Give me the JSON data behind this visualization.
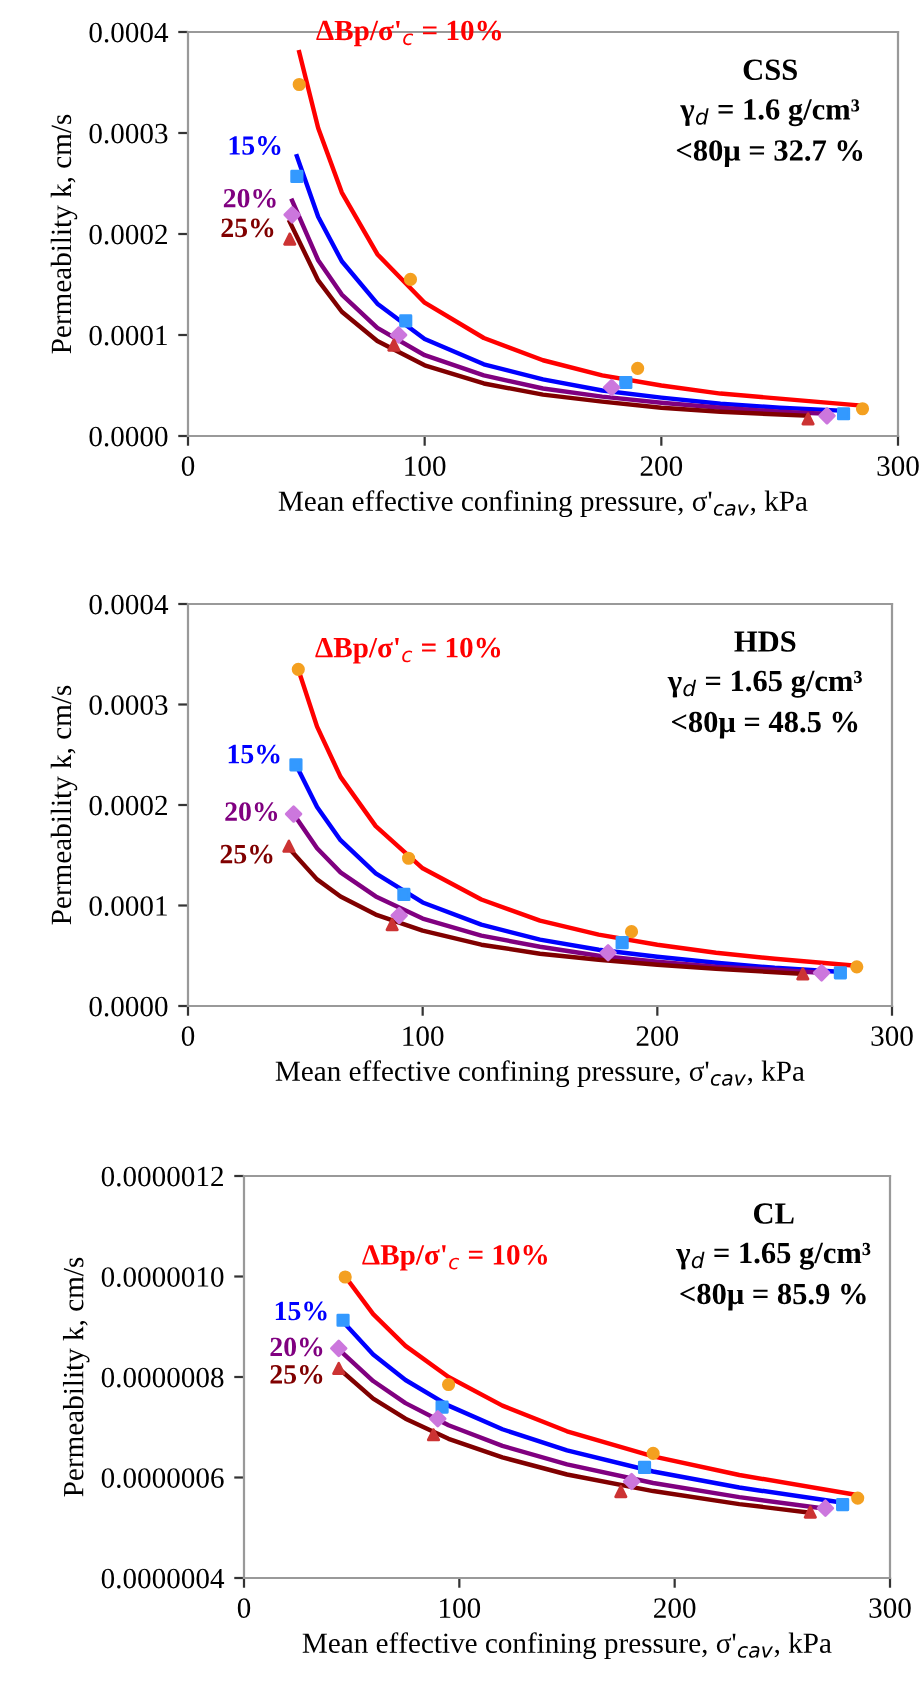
{
  "chart_data": [
    {
      "type": "scatter",
      "xlabel": "Mean effective confining pressure, σ'$_{cav}$, kPa",
      "ylabel": "Permeability k, cm/s",
      "xlim": [
        0,
        300
      ],
      "xticks": [
        0,
        100,
        200,
        300
      ],
      "ylim": [
        0,
        0.0004
      ],
      "yticks": [
        {
          "value": 0,
          "label": "0.0000"
        },
        {
          "value": 0.0001,
          "label": "0.0001"
        },
        {
          "value": 0.0002,
          "label": "0.0002"
        },
        {
          "value": 0.0003,
          "label": "0.0003"
        },
        {
          "value": 0.0004,
          "label": "0.0004"
        }
      ],
      "annotations": [
        "CSS",
        "γ$_{d}$ = 1.6 g/cm³",
        "<80μ = 32.7 %"
      ],
      "series": [
        {
          "marker": "circle",
          "color": "#f4a020",
          "x": [
            47,
            94,
            190,
            285
          ],
          "values": [
            0.000348,
            0.000155,
            6.7e-05,
            2.7e-05
          ]
        },
        {
          "marker": "square",
          "color": "#3399ff",
          "x": [
            46,
            92,
            185,
            277
          ],
          "values": [
            0.000257,
            0.000114,
            5.3e-05,
            2.2e-05
          ]
        },
        {
          "marker": "diamond",
          "color": "#cc77dd",
          "x": [
            44,
            89,
            179,
            270
          ],
          "values": [
            0.000219,
            0.0001,
            4.8e-05,
            2e-05
          ]
        },
        {
          "marker": "triangle",
          "color": "#cc3333",
          "x": [
            43,
            87,
            262
          ],
          "values": [
            0.000195,
            9e-05,
            1.7e-05
          ]
        },
        {
          "type": "line",
          "name": "ΔBp/σ'$_{c}$ = 10%",
          "color": "#ff0000",
          "x": [
            47,
            55,
            65,
            80,
            100,
            125,
            150,
            175,
            200,
            225,
            250,
            285
          ],
          "values": [
            0.00038,
            0.000305,
            0.000241,
            0.00018,
            0.000132,
            9.7e-05,
            7.5e-05,
            6e-05,
            5e-05,
            4.2e-05,
            3.7e-05,
            3e-05
          ]
        },
        {
          "type": "line",
          "name": "15%",
          "color": "#0000ff",
          "x": [
            46,
            55,
            65,
            80,
            100,
            125,
            150,
            175,
            200,
            225,
            250,
            277
          ],
          "values": [
            0.000277,
            0.000217,
            0.000173,
            0.000131,
            9.6e-05,
            7.1e-05,
            5.6e-05,
            4.5e-05,
            3.8e-05,
            3.2e-05,
            2.8e-05,
            2.5e-05
          ]
        },
        {
          "type": "line",
          "name": "20%",
          "color": "#800080",
          "x": [
            44,
            55,
            65,
            80,
            100,
            125,
            150,
            175,
            200,
            225,
            250,
            270
          ],
          "values": [
            0.000233,
            0.000174,
            0.00014,
            0.000107,
            8e-05,
            6e-05,
            4.7e-05,
            3.9e-05,
            3.3e-05,
            2.8e-05,
            2.4e-05,
            2.2e-05
          ]
        },
        {
          "type": "line",
          "name": "25%",
          "color": "#800000",
          "x": [
            43,
            55,
            65,
            80,
            100,
            125,
            150,
            175,
            200,
            225,
            262
          ],
          "values": [
            0.000212,
            0.000154,
            0.000123,
            9.4e-05,
            7e-05,
            5.2e-05,
            4.1e-05,
            3.4e-05,
            2.8e-05,
            2.4e-05,
            2e-05
          ]
        }
      ]
    },
    {
      "type": "scatter",
      "xlabel": "Mean effective confining pressure, σ'$_{cav}$, kPa",
      "ylabel": "Permeability k, cm/s",
      "xlim": [
        0,
        300
      ],
      "xticks": [
        0,
        100,
        200,
        300
      ],
      "ylim": [
        0,
        0.0004
      ],
      "yticks": [
        {
          "value": 0,
          "label": "0.0000"
        },
        {
          "value": 0.0001,
          "label": "0.0001"
        },
        {
          "value": 0.0002,
          "label": "0.0002"
        },
        {
          "value": 0.0003,
          "label": "0.0003"
        },
        {
          "value": 0.0004,
          "label": "0.0004"
        }
      ],
      "annotations": [
        "HDS",
        "γ$_{d}$ = 1.65 g/cm³",
        "<80μ = 48.5 %"
      ],
      "series": [
        {
          "marker": "circle",
          "color": "#f4a020",
          "x": [
            47,
            94,
            189,
            285
          ],
          "values": [
            0.000335,
            0.000147,
            7.4e-05,
            3.9e-05
          ]
        },
        {
          "marker": "square",
          "color": "#3399ff",
          "x": [
            46,
            92,
            185,
            278
          ],
          "values": [
            0.00024,
            0.000111,
            6.3e-05,
            3.3e-05
          ]
        },
        {
          "marker": "diamond",
          "color": "#cc77dd",
          "x": [
            45,
            90,
            179,
            270
          ],
          "values": [
            0.000191,
            9e-05,
            5.3e-05,
            3.3e-05
          ]
        },
        {
          "marker": "triangle",
          "color": "#cc3333",
          "x": [
            43,
            87,
            262
          ],
          "values": [
            0.000159,
            8.1e-05,
            3.2e-05
          ]
        },
        {
          "type": "line",
          "name": "ΔBp/σ'$_{c}$ = 10%",
          "color": "#ff0000",
          "x": [
            47,
            55,
            65,
            80,
            100,
            125,
            150,
            175,
            200,
            225,
            250,
            285
          ],
          "values": [
            0.000335,
            0.000278,
            0.000228,
            0.000179,
            0.000137,
            0.000106,
            8.5e-05,
            7.1e-05,
            6.1e-05,
            5.3e-05,
            4.7e-05,
            4e-05
          ]
        },
        {
          "type": "line",
          "name": "15%",
          "color": "#0000ff",
          "x": [
            46,
            55,
            65,
            80,
            100,
            125,
            150,
            175,
            200,
            225,
            250,
            278
          ],
          "values": [
            0.00024,
            0.000198,
            0.000165,
            0.000132,
            0.000103,
            8.1e-05,
            6.6e-05,
            5.6e-05,
            4.9e-05,
            4.3e-05,
            3.8e-05,
            3.4e-05
          ]
        },
        {
          "type": "line",
          "name": "20%",
          "color": "#800080",
          "x": [
            45,
            55,
            65,
            80,
            100,
            125,
            150,
            175,
            200,
            225,
            250,
            270
          ],
          "values": [
            0.000191,
            0.000157,
            0.000133,
            0.000109,
            8.7e-05,
            7e-05,
            5.9e-05,
            5e-05,
            4.4e-05,
            3.9e-05,
            3.6e-05,
            3.3e-05
          ]
        },
        {
          "type": "line",
          "name": "25%",
          "color": "#800000",
          "x": [
            43,
            55,
            65,
            80,
            100,
            125,
            150,
            175,
            200,
            225,
            262
          ],
          "values": [
            0.000157,
            0.000126,
            0.000109,
            9.1e-05,
            7.5e-05,
            6.1e-05,
            5.2e-05,
            4.6e-05,
            4.1e-05,
            3.7e-05,
            3.2e-05
          ]
        }
      ]
    },
    {
      "type": "scatter",
      "xlabel": "Mean effective confining pressure, σ'$_{cav}$, kPa",
      "ylabel": "Permeability k, cm/s",
      "xlim": [
        0,
        300
      ],
      "xticks": [
        0,
        100,
        200,
        300
      ],
      "ylim": [
        4e-07,
        1.2e-06
      ],
      "yticks": [
        {
          "value": 4e-07,
          "label": "0.0000004"
        },
        {
          "value": 6e-07,
          "label": "0.0000006"
        },
        {
          "value": 8e-07,
          "label": "0.0000008"
        },
        {
          "value": 1e-06,
          "label": "0.0000010"
        },
        {
          "value": 1.2e-06,
          "label": "0.0000012"
        }
      ],
      "annotations": [
        "CL",
        "γ$_{d}$ = 1.65 g/cm³",
        "<80μ = 85.9 %"
      ],
      "series": [
        {
          "marker": "circle",
          "color": "#f4a020",
          "x": [
            47,
            95,
            190,
            285
          ],
          "values": [
            9.99e-07,
            7.85e-07,
            6.48e-07,
            5.59e-07
          ]
        },
        {
          "marker": "square",
          "color": "#3399ff",
          "x": [
            46,
            92,
            186,
            278
          ],
          "values": [
            9.13e-07,
            7.4e-07,
            6.2e-07,
            5.46e-07
          ]
        },
        {
          "marker": "diamond",
          "color": "#cc77dd",
          "x": [
            44,
            90,
            180,
            270
          ],
          "values": [
            8.57e-07,
            7.17e-07,
            5.92e-07,
            5.39e-07
          ]
        },
        {
          "marker": "triangle",
          "color": "#cc3333",
          "x": [
            44,
            88,
            175,
            263
          ],
          "values": [
            8.17e-07,
            6.85e-07,
            5.72e-07,
            5.31e-07
          ]
        },
        {
          "type": "line",
          "name": "ΔBp/σ'$_{c}$ = 10%",
          "color": "#ff0000",
          "x": [
            47,
            60,
            75,
            95,
            120,
            150,
            190,
            230,
            285
          ],
          "values": [
            1e-06,
            9.25e-07,
            8.62e-07,
            8e-07,
            7.43e-07,
            6.92e-07,
            6.42e-07,
            6.05e-07,
            5.65e-07
          ]
        },
        {
          "type": "line",
          "name": "15%",
          "color": "#0000ff",
          "x": [
            46,
            60,
            75,
            95,
            120,
            150,
            190,
            230,
            278
          ],
          "values": [
            9.1e-07,
            8.45e-07,
            7.94e-07,
            7.43e-07,
            6.96e-07,
            6.54e-07,
            6.12e-07,
            5.8e-07,
            5.5e-07
          ]
        },
        {
          "type": "line",
          "name": "20%",
          "color": "#800080",
          "x": [
            44,
            60,
            75,
            95,
            120,
            150,
            190,
            230,
            270
          ],
          "values": [
            8.55e-07,
            7.92e-07,
            7.48e-07,
            7.04e-07,
            6.63e-07,
            6.26e-07,
            5.89e-07,
            5.61e-07,
            5.38e-07
          ]
        },
        {
          "type": "line",
          "name": "25%",
          "color": "#800000",
          "x": [
            44,
            60,
            75,
            95,
            120,
            150,
            190,
            230,
            263
          ],
          "values": [
            8.17e-07,
            7.57e-07,
            7.17e-07,
            6.77e-07,
            6.4e-07,
            6.06e-07,
            5.73e-07,
            5.47e-07,
            5.3e-07
          ]
        }
      ]
    }
  ]
}
